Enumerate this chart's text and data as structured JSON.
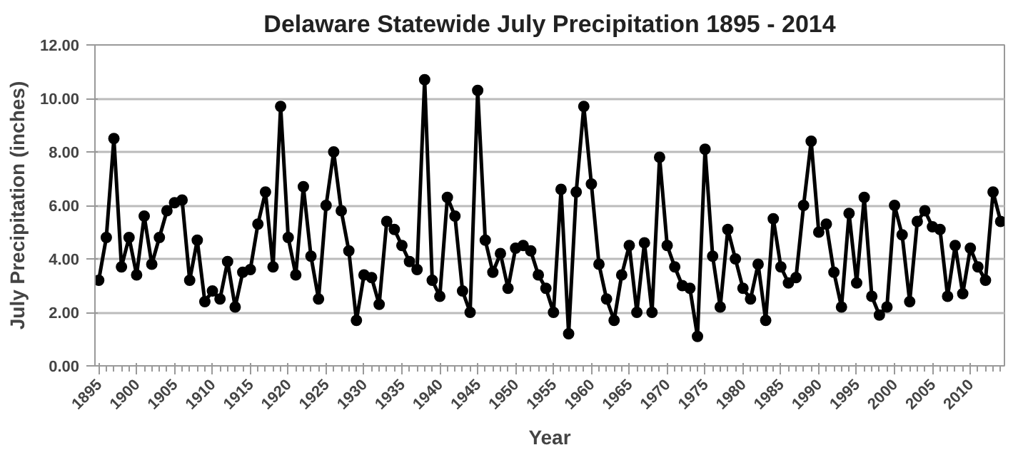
{
  "chart_data": {
    "type": "line",
    "title": "Delaware Statewide July Precipitation 1895 - 2014",
    "xlabel": "Year",
    "ylabel": "July Precipitation (inches)",
    "x": [
      1895,
      1896,
      1897,
      1898,
      1899,
      1900,
      1901,
      1902,
      1903,
      1904,
      1905,
      1906,
      1907,
      1908,
      1909,
      1910,
      1911,
      1912,
      1913,
      1914,
      1915,
      1916,
      1917,
      1918,
      1919,
      1920,
      1921,
      1922,
      1923,
      1924,
      1925,
      1926,
      1927,
      1928,
      1929,
      1930,
      1931,
      1932,
      1933,
      1934,
      1935,
      1936,
      1937,
      1938,
      1939,
      1940,
      1941,
      1942,
      1943,
      1944,
      1945,
      1946,
      1947,
      1948,
      1949,
      1950,
      1951,
      1952,
      1953,
      1954,
      1955,
      1956,
      1957,
      1958,
      1959,
      1960,
      1961,
      1962,
      1963,
      1964,
      1965,
      1966,
      1967,
      1968,
      1969,
      1970,
      1971,
      1972,
      1973,
      1974,
      1975,
      1976,
      1977,
      1978,
      1979,
      1980,
      1981,
      1982,
      1983,
      1984,
      1985,
      1986,
      1987,
      1988,
      1989,
      1990,
      1991,
      1992,
      1993,
      1994,
      1995,
      1996,
      1997,
      1998,
      1999,
      2000,
      2001,
      2002,
      2003,
      2004,
      2005,
      2006,
      2007,
      2008,
      2009,
      2010,
      2011,
      2012,
      2013,
      2014
    ],
    "series": [
      {
        "color": "#000000",
        "values": [
          3.2,
          4.8,
          8.5,
          3.7,
          4.8,
          3.4,
          5.6,
          3.8,
          4.8,
          5.8,
          6.1,
          6.2,
          3.2,
          4.7,
          2.4,
          2.8,
          2.5,
          3.9,
          2.2,
          3.5,
          3.6,
          5.3,
          6.5,
          3.7,
          9.7,
          4.8,
          3.4,
          6.7,
          4.1,
          2.5,
          6.0,
          8.0,
          5.8,
          4.3,
          1.7,
          3.4,
          3.3,
          2.3,
          5.4,
          5.1,
          4.5,
          3.9,
          3.6,
          10.7,
          3.2,
          2.6,
          6.3,
          5.6,
          2.8,
          2.0,
          10.3,
          4.7,
          3.5,
          4.2,
          2.9,
          4.4,
          4.5,
          4.3,
          3.4,
          2.9,
          2.0,
          6.6,
          1.2,
          6.5,
          9.7,
          6.8,
          3.8,
          2.5,
          1.7,
          3.4,
          4.5,
          2.0,
          4.6,
          2.0,
          7.8,
          4.5,
          3.7,
          3.0,
          2.9,
          1.1,
          8.1,
          4.1,
          2.2,
          5.1,
          4.0,
          2.9,
          2.5,
          3.8,
          1.7,
          5.5,
          3.7,
          3.1,
          3.3,
          6.0,
          8.4,
          5.0,
          5.3,
          3.5,
          2.2,
          5.7,
          3.1,
          6.3,
          2.6,
          1.9,
          2.2,
          6.0,
          4.9,
          2.4,
          5.4,
          5.8,
          5.2,
          5.1,
          2.6,
          4.5,
          2.7,
          4.4,
          3.7,
          3.2,
          6.5,
          5.4
        ]
      }
    ],
    "xlim": [
      1894.5,
      2014.5
    ],
    "xticks": [
      1895,
      1900,
      1905,
      1910,
      1915,
      1920,
      1925,
      1930,
      1935,
      1940,
      1945,
      1950,
      1955,
      1960,
      1965,
      1970,
      1975,
      1980,
      1985,
      1990,
      1995,
      2000,
      2005,
      2010
    ],
    "ylim": [
      0,
      12
    ],
    "yticks": [
      {
        "value": 0,
        "label": "0.00"
      },
      {
        "value": 2,
        "label": "2.00"
      },
      {
        "value": 4,
        "label": "4.00"
      },
      {
        "value": 6,
        "label": "6.00"
      },
      {
        "value": 8,
        "label": "8.00"
      },
      {
        "value": 10,
        "label": "10.00"
      },
      {
        "value": 12,
        "label": "12.00"
      }
    ],
    "grid": "y",
    "marker": "circle",
    "line_style": "solid"
  }
}
